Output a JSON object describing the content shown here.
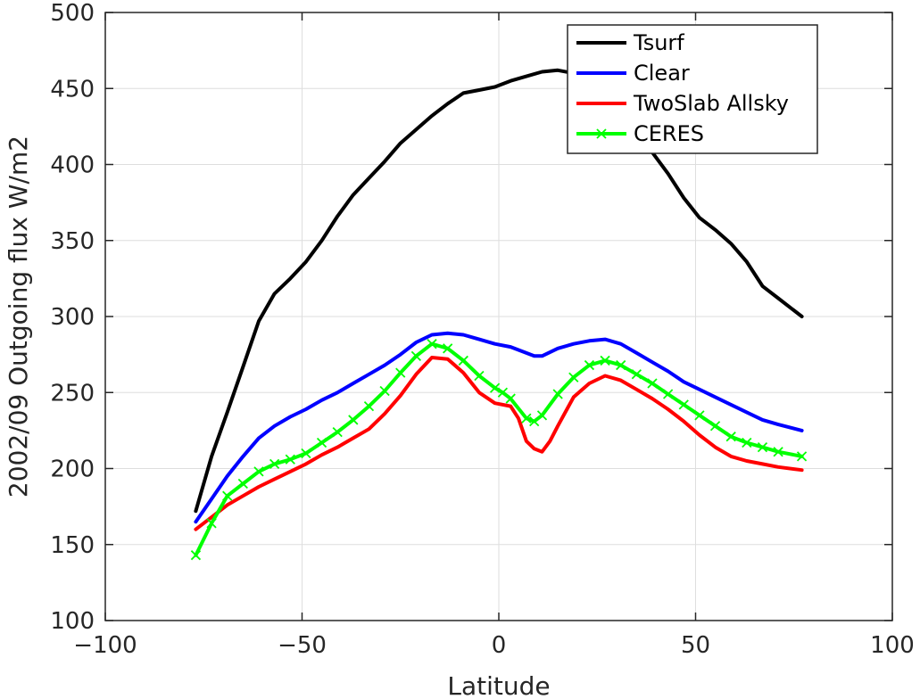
{
  "chart_data": {
    "type": "line",
    "xlabel": "Latitude",
    "ylabel": "2002/09 Outgoing flux W/m2",
    "xlim": [
      -100,
      100
    ],
    "ylim": [
      100,
      500
    ],
    "xticks": [
      -100,
      -50,
      0,
      50,
      100
    ],
    "yticks": [
      100,
      150,
      200,
      250,
      300,
      350,
      400,
      450,
      500
    ],
    "xtick_labels": [
      "−100",
      "−50",
      "0",
      "50",
      "100"
    ],
    "ytick_labels": [
      "100",
      "150",
      "200",
      "250",
      "300",
      "350",
      "400",
      "450",
      "500"
    ],
    "grid": true,
    "legend_position": "top-right",
    "series": [
      {
        "name": "Tsurf",
        "color": "#000000",
        "marker": "none",
        "x": [
          -77,
          -73,
          -69,
          -65,
          -61,
          -57,
          -53,
          -49,
          -45,
          -41,
          -37,
          -33,
          -29,
          -25,
          -21,
          -17,
          -13,
          -9,
          -5,
          -1,
          3,
          7,
          11,
          15,
          19,
          23,
          27,
          31,
          35,
          39,
          43,
          47,
          51,
          55,
          59,
          63,
          67,
          71,
          77
        ],
        "y": [
          172,
          208,
          237,
          267,
          297,
          315,
          325,
          336,
          350,
          366,
          380,
          391,
          402,
          414,
          423,
          432,
          440,
          447,
          449,
          451,
          455,
          458,
          461,
          462,
          460,
          456,
          448,
          436,
          418,
          408,
          394,
          378,
          365,
          357,
          348,
          336,
          320,
          312,
          300
        ]
      },
      {
        "name": "Clear",
        "color": "#0000ff",
        "marker": "none",
        "x": [
          -77,
          -73,
          -69,
          -65,
          -61,
          -57,
          -53,
          -49,
          -45,
          -41,
          -37,
          -33,
          -29,
          -25,
          -21,
          -17,
          -13,
          -9,
          -5,
          -1,
          3,
          7,
          9,
          11,
          15,
          19,
          23,
          27,
          31,
          35,
          39,
          43,
          47,
          51,
          55,
          59,
          63,
          67,
          71,
          77
        ],
        "y": [
          165,
          180,
          195,
          208,
          220,
          228,
          234,
          239,
          245,
          250,
          256,
          262,
          268,
          275,
          283,
          288,
          289,
          288,
          285,
          282,
          280,
          276,
          274,
          274,
          279,
          282,
          284,
          285,
          282,
          276,
          270,
          264,
          257,
          252,
          247,
          242,
          237,
          232,
          229,
          225
        ]
      },
      {
        "name": "TwoSlab Allsky",
        "color": "#ff0000",
        "marker": "none",
        "x": [
          -77,
          -73,
          -69,
          -65,
          -61,
          -57,
          -53,
          -49,
          -45,
          -41,
          -37,
          -33,
          -29,
          -25,
          -21,
          -17,
          -13,
          -9,
          -5,
          -1,
          3,
          5,
          7,
          9,
          11,
          13,
          15,
          19,
          23,
          27,
          31,
          35,
          39,
          43,
          47,
          51,
          55,
          59,
          63,
          67,
          71,
          77
        ],
        "y": [
          160,
          168,
          176,
          182,
          188,
          193,
          198,
          203,
          209,
          214,
          220,
          226,
          236,
          248,
          262,
          273,
          272,
          263,
          250,
          243,
          241,
          233,
          218,
          213,
          211,
          218,
          228,
          247,
          256,
          261,
          258,
          252,
          246,
          239,
          231,
          222,
          214,
          208,
          205,
          203,
          201,
          199
        ]
      },
      {
        "name": "CERES",
        "color": "#00ff00",
        "marker": "x",
        "x": [
          -77,
          -73,
          -69,
          -65,
          -61,
          -57,
          -53,
          -49,
          -45,
          -41,
          -37,
          -33,
          -29,
          -25,
          -21,
          -17,
          -13,
          -9,
          -5,
          -1,
          1,
          3,
          7,
          9,
          11,
          15,
          19,
          23,
          27,
          31,
          35,
          39,
          43,
          47,
          51,
          55,
          59,
          63,
          67,
          71,
          77
        ],
        "y": [
          143,
          164,
          182,
          190,
          198,
          203,
          206,
          210,
          217,
          224,
          232,
          241,
          251,
          263,
          274,
          282,
          279,
          271,
          261,
          253,
          250,
          246,
          233,
          231,
          235,
          249,
          260,
          268,
          271,
          268,
          262,
          256,
          249,
          242,
          235,
          228,
          221,
          217,
          214,
          211,
          208
        ]
      }
    ]
  }
}
